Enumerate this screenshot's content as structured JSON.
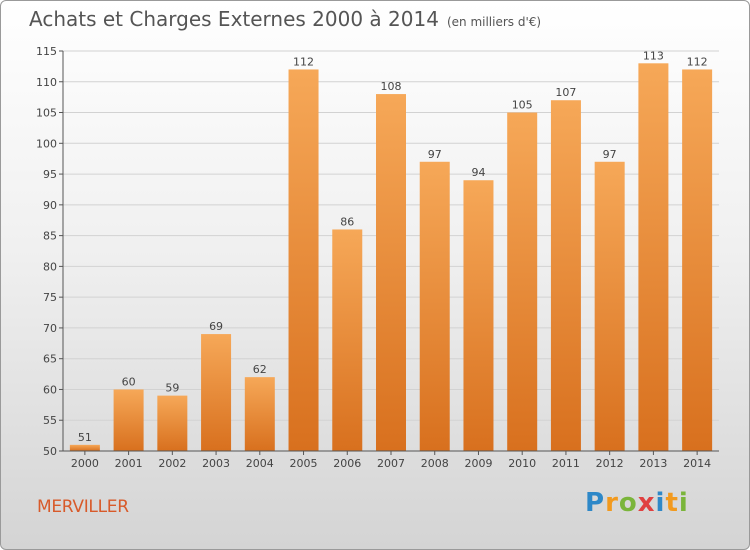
{
  "title": "Achats et Charges Externes 2000 à 2014",
  "subtitle": "(en milliers d'€)",
  "city": "MERVILLER",
  "logo": {
    "p": "P",
    "r": "r",
    "o": "o",
    "x": "x",
    "i": "i",
    "t": "t",
    "i2": "i"
  },
  "colors": {
    "bar_top": "#f6a858",
    "bar_bottom": "#d8701e",
    "grid": "#d2d2d2",
    "axis": "#555555",
    "city": "#d85a2a"
  },
  "chart_data": {
    "type": "bar",
    "categories": [
      "2000",
      "2001",
      "2002",
      "2003",
      "2004",
      "2005",
      "2006",
      "2007",
      "2008",
      "2009",
      "2010",
      "2011",
      "2012",
      "2013",
      "2014"
    ],
    "values": [
      51,
      60,
      59,
      69,
      62,
      112,
      86,
      108,
      97,
      94,
      105,
      107,
      97,
      113,
      112
    ],
    "ylim": [
      50,
      115
    ],
    "yticks": [
      50,
      55,
      60,
      65,
      70,
      75,
      80,
      85,
      90,
      95,
      100,
      105,
      110,
      115
    ],
    "grid": true
  }
}
